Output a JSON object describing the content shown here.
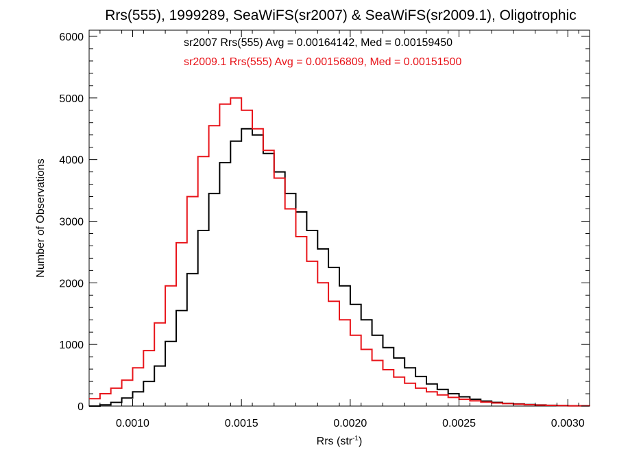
{
  "chart_data": {
    "type": "histogram-step",
    "title": "Rrs(555), 1999289, SeaWiFS(sr2007) & SeaWiFS(sr2009.1), Oligotrophic",
    "xlabel": "Rrs (str",
    "xlabel_sup": "-1",
    "xlabel_close": ")",
    "ylabel": "Number of Observations",
    "xlim": [
      0.0008,
      0.0031
    ],
    "ylim": [
      0,
      6100
    ],
    "x_ticks": [
      {
        "value": 0.001,
        "label": "0.0010"
      },
      {
        "value": 0.0015,
        "label": "0.0015"
      },
      {
        "value": 0.002,
        "label": "0.0020"
      },
      {
        "value": 0.0025,
        "label": "0.0025"
      },
      {
        "value": 0.003,
        "label": "0.0030"
      }
    ],
    "y_ticks": [
      {
        "value": 0,
        "label": "0"
      },
      {
        "value": 1000,
        "label": "1000"
      },
      {
        "value": 2000,
        "label": "2000"
      },
      {
        "value": 3000,
        "label": "3000"
      },
      {
        "value": 4000,
        "label": "4000"
      },
      {
        "value": 5000,
        "label": "5000"
      },
      {
        "value": 6000,
        "label": "6000"
      }
    ],
    "annotations": [
      {
        "text": "sr2007 Rrs(555) Avg = 0.00164142, Med = 0.00159450",
        "color": "#000000"
      },
      {
        "text": "sr2009.1 Rrs(555) Avg = 0.00156809, Med = 0.00151500",
        "color": "#e8141a"
      }
    ],
    "grid": false,
    "series": [
      {
        "color": "#000000",
        "x": [
          0.0008,
          0.00085,
          0.0009,
          0.00095,
          0.001,
          0.00105,
          0.0011,
          0.00115,
          0.0012,
          0.00125,
          0.0013,
          0.00135,
          0.0014,
          0.00145,
          0.0015,
          0.00155,
          0.0016,
          0.00165,
          0.0017,
          0.00175,
          0.0018,
          0.00185,
          0.0019,
          0.00195,
          0.002,
          0.00205,
          0.0021,
          0.00215,
          0.0022,
          0.00225,
          0.0023,
          0.00235,
          0.0024,
          0.00245,
          0.0025,
          0.00255,
          0.0026,
          0.00265,
          0.0027,
          0.00275,
          0.0028,
          0.00285,
          0.0029,
          0.00295,
          0.003,
          0.0031
        ],
        "y": [
          0,
          20,
          60,
          130,
          230,
          400,
          650,
          1050,
          1550,
          2150,
          2850,
          3450,
          3950,
          4300,
          4500,
          4400,
          4100,
          3800,
          3450,
          3150,
          2850,
          2550,
          2250,
          1950,
          1650,
          1400,
          1150,
          950,
          780,
          620,
          480,
          360,
          270,
          200,
          150,
          110,
          80,
          60,
          45,
          35,
          25,
          18,
          12,
          8,
          5,
          3
        ]
      },
      {
        "color": "#e8141a",
        "x": [
          0.0008,
          0.00085,
          0.0009,
          0.00095,
          0.001,
          0.00105,
          0.0011,
          0.00115,
          0.0012,
          0.00125,
          0.0013,
          0.00135,
          0.0014,
          0.00145,
          0.0015,
          0.00155,
          0.0016,
          0.00165,
          0.0017,
          0.00175,
          0.0018,
          0.00185,
          0.0019,
          0.00195,
          0.002,
          0.00205,
          0.0021,
          0.00215,
          0.0022,
          0.00225,
          0.0023,
          0.00235,
          0.0024,
          0.00245,
          0.0025,
          0.00255,
          0.0026,
          0.00265,
          0.0027,
          0.00275,
          0.0028,
          0.00285,
          0.0029,
          0.00295,
          0.003,
          0.0031
        ],
        "y": [
          120,
          200,
          290,
          420,
          620,
          900,
          1350,
          1950,
          2650,
          3400,
          4050,
          4550,
          4900,
          5000,
          4800,
          4500,
          4150,
          3700,
          3200,
          2750,
          2350,
          2000,
          1700,
          1400,
          1150,
          920,
          740,
          590,
          470,
          370,
          290,
          230,
          180,
          140,
          110,
          85,
          65,
          50,
          40,
          30,
          22,
          16,
          11,
          8,
          5,
          3
        ]
      }
    ]
  }
}
